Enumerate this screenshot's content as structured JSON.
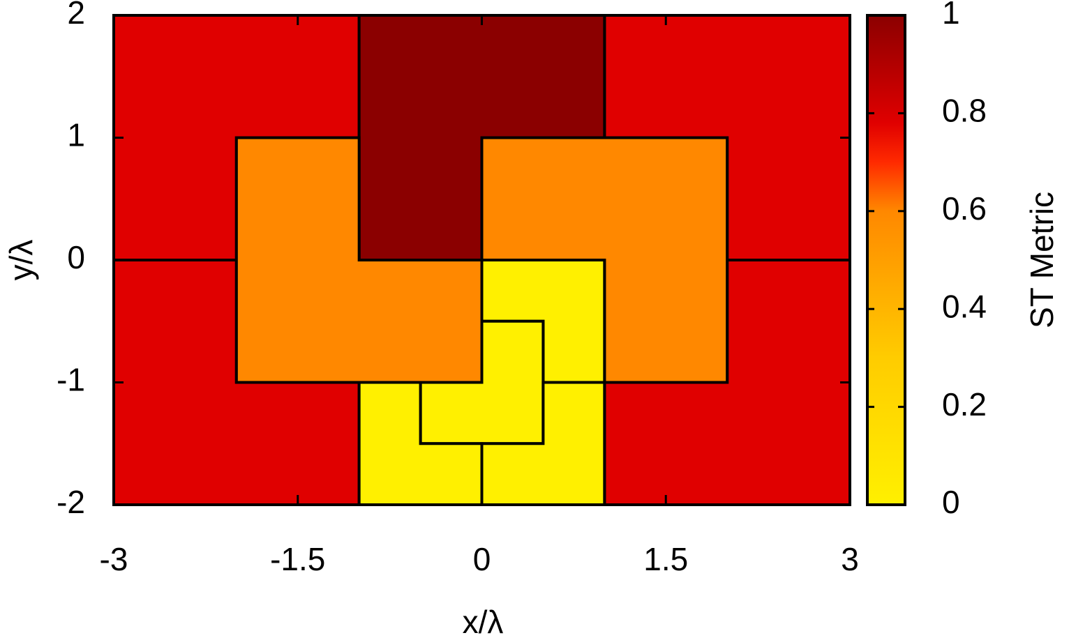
{
  "chart_data": {
    "type": "heatmap",
    "xlabel": "x/λ",
    "ylabel": "y/λ",
    "colorbar_label": "ST Metric",
    "xlim": [
      -3,
      3
    ],
    "ylim": [
      -2,
      2
    ],
    "xticks": [
      -3,
      -1.5,
      0,
      1.5,
      3
    ],
    "yticks": [
      -2,
      -1,
      0,
      1,
      2
    ],
    "clim": [
      0,
      1
    ],
    "cticks": [
      0,
      0.2,
      0.4,
      0.6,
      0.8,
      1
    ],
    "colormap": [
      [
        0,
        "#fff000"
      ],
      [
        0.3,
        "#ffcc00"
      ],
      [
        0.6,
        "#ff8800"
      ],
      [
        0.7,
        "#ff2a00"
      ],
      [
        0.78,
        "#e00000"
      ],
      [
        1,
        "#8b0000"
      ]
    ],
    "cells": [
      {
        "points": [
          [
            -3,
            2
          ],
          [
            -1,
            2
          ],
          [
            -1,
            1
          ],
          [
            -2,
            1
          ],
          [
            -2,
            0
          ],
          [
            -3,
            0
          ]
        ],
        "value": 0.8,
        "color": "#e00000"
      },
      {
        "points": [
          [
            -3,
            0
          ],
          [
            -2,
            0
          ],
          [
            -2,
            -1
          ],
          [
            -1,
            -1
          ],
          [
            -1,
            -2
          ],
          [
            -3,
            -2
          ]
        ],
        "value": 0.8,
        "color": "#e00000"
      },
      {
        "points": [
          [
            1,
            2
          ],
          [
            3,
            2
          ],
          [
            3,
            0
          ],
          [
            2,
            0
          ],
          [
            2,
            1
          ],
          [
            1,
            1
          ]
        ],
        "value": 0.8,
        "color": "#e00000"
      },
      {
        "points": [
          [
            2,
            0
          ],
          [
            3,
            0
          ],
          [
            3,
            -2
          ],
          [
            1,
            -2
          ],
          [
            1,
            -1
          ],
          [
            2,
            -1
          ]
        ],
        "value": 0.8,
        "color": "#e00000"
      },
      {
        "points": [
          [
            -1,
            2
          ],
          [
            1,
            2
          ],
          [
            1,
            1
          ],
          [
            0,
            1
          ],
          [
            0,
            0
          ],
          [
            -1,
            0
          ]
        ],
        "value": 0.95,
        "color": "#8b0000"
      },
      {
        "points": [
          [
            -2,
            1
          ],
          [
            -1,
            1
          ],
          [
            -1,
            0
          ],
          [
            0,
            0
          ],
          [
            0,
            -1
          ],
          [
            -2,
            -1
          ]
        ],
        "value": 0.6,
        "color": "#ff8800"
      },
      {
        "points": [
          [
            0,
            1
          ],
          [
            2,
            1
          ],
          [
            2,
            -1
          ],
          [
            1,
            -1
          ],
          [
            1,
            0
          ],
          [
            0,
            0
          ]
        ],
        "value": 0.6,
        "color": "#ff8800"
      },
      {
        "points": [
          [
            0,
            0
          ],
          [
            1,
            0
          ],
          [
            1,
            -1
          ],
          [
            0.5,
            -1
          ],
          [
            0.5,
            -0.5
          ],
          [
            0,
            -0.5
          ]
        ],
        "value": 0.05,
        "color": "#fff000"
      },
      {
        "points": [
          [
            0,
            -0.5
          ],
          [
            0.5,
            -0.5
          ],
          [
            0.5,
            -1.5
          ],
          [
            -0.5,
            -1.5
          ],
          [
            -0.5,
            -1
          ],
          [
            0,
            -1
          ]
        ],
        "value": 0.05,
        "color": "#fff000"
      },
      {
        "points": [
          [
            -1,
            -1
          ],
          [
            -0.5,
            -1
          ],
          [
            -0.5,
            -1.5
          ],
          [
            0,
            -1.5
          ],
          [
            0,
            -2
          ],
          [
            -1,
            -2
          ]
        ],
        "value": 0.05,
        "color": "#fff000"
      },
      {
        "points": [
          [
            0.5,
            -1
          ],
          [
            1,
            -1
          ],
          [
            1,
            -2
          ],
          [
            0,
            -2
          ],
          [
            0,
            -1.5
          ],
          [
            0.5,
            -1.5
          ]
        ],
        "value": 0.05,
        "color": "#fff000"
      }
    ]
  }
}
